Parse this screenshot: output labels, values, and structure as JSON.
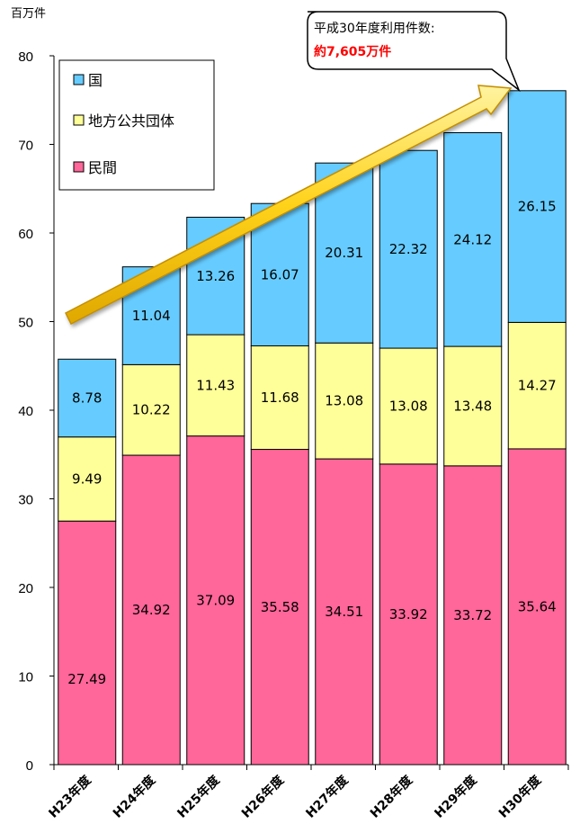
{
  "chart_data": {
    "type": "bar",
    "stacked": true,
    "unit_label": "百万件",
    "categories": [
      "H23年度",
      "H24年度",
      "H25年度",
      "H26年度",
      "H27年度",
      "H28年度",
      "H29年度",
      "H30年度"
    ],
    "series": [
      {
        "name": "民間",
        "color": "#ff6699",
        "values": [
          27.49,
          34.92,
          37.09,
          35.58,
          34.51,
          33.92,
          33.72,
          35.64
        ]
      },
      {
        "name": "地方公共団体",
        "color": "#ffff99",
        "values": [
          9.49,
          10.22,
          11.43,
          11.68,
          13.08,
          13.08,
          13.48,
          14.27
        ]
      },
      {
        "name": "国",
        "color": "#66ccff",
        "values": [
          8.78,
          11.04,
          13.26,
          16.07,
          20.31,
          22.32,
          24.12,
          26.15
        ]
      }
    ],
    "legend_order": [
      "国",
      "地方公共団体",
      "民間"
    ],
    "ylim": [
      0,
      80
    ],
    "yticks": [
      0,
      10,
      20,
      30,
      40,
      50,
      60,
      70,
      80
    ],
    "grid": false,
    "legend_position": "top-left",
    "callout": {
      "line1": "平成30年度利用件数:",
      "line2": "約7,605万件"
    },
    "trend_arrow_color": "#ffcc00"
  }
}
